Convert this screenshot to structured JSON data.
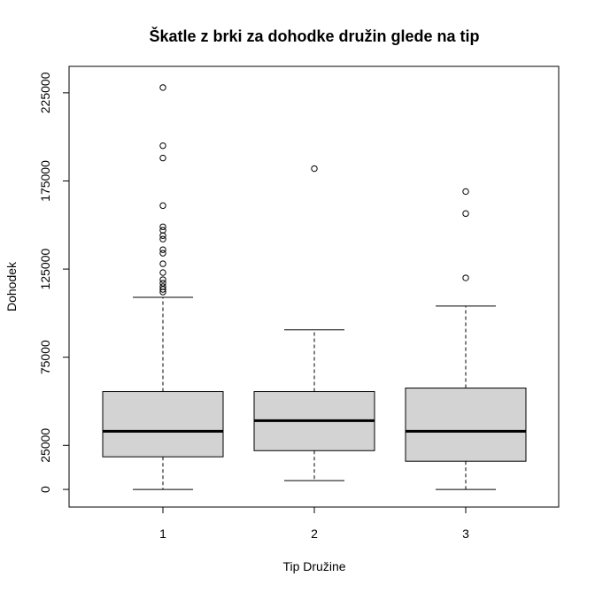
{
  "chart_data": {
    "type": "boxplot",
    "title": "Škatle z brki za dohodke družin glede na tip",
    "xlabel": "Tip Družine",
    "ylabel": "Dohodek",
    "categories": [
      "1",
      "2",
      "3"
    ],
    "y_ticks": [
      0,
      25000,
      75000,
      125000,
      175000,
      225000
    ],
    "y_tick_labels": [
      "0",
      "25000",
      "75000",
      "125000",
      "175000",
      "225000"
    ],
    "ylim": [
      -10000,
      240000
    ],
    "grid": false,
    "box_fill": "#d3d3d3",
    "boxes": [
      {
        "category": "1",
        "whisker_low": 0,
        "q1": 18500,
        "median": 33000,
        "q3": 55500,
        "whisker_high": 109000,
        "outliers": [
          112000,
          113500,
          115000,
          117000,
          119000,
          123000,
          128000,
          134000,
          136000,
          142000,
          144000,
          147000,
          149000,
          161000,
          188000,
          195000,
          228000
        ]
      },
      {
        "category": "2",
        "whisker_low": 5000,
        "q1": 22000,
        "median": 39000,
        "q3": 55500,
        "whisker_high": 90500,
        "outliers": [
          182000
        ]
      },
      {
        "category": "3",
        "whisker_low": 0,
        "q1": 16000,
        "median": 33000,
        "q3": 57500,
        "whisker_high": 104000,
        "outliers": [
          120000,
          156500,
          169000
        ]
      }
    ]
  }
}
